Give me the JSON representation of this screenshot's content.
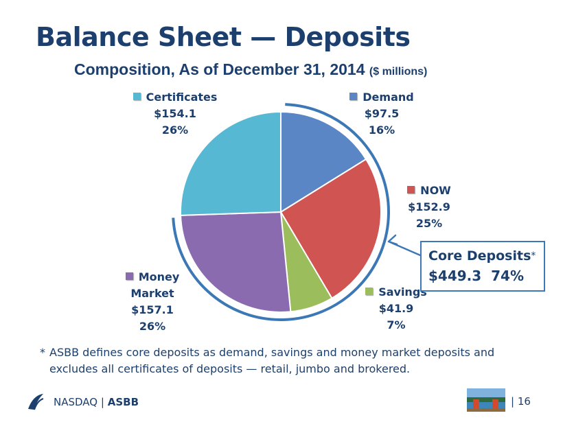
{
  "title": "Balance Sheet — Deposits",
  "subtitle": "Composition, As of December 31, 2014",
  "subtitle_unit": "($ millions)",
  "chart_data": {
    "type": "pie",
    "unit": "$ millions",
    "slices": [
      {
        "name": "Demand",
        "label_lines": [
          "Demand"
        ],
        "value": 97.5,
        "value_label": "$97.5",
        "percent": 16,
        "percent_label": "16%",
        "color": "#5a86c6"
      },
      {
        "name": "NOW",
        "label_lines": [
          "NOW"
        ],
        "value": 152.9,
        "value_label": "$152.9",
        "percent": 25,
        "percent_label": "25%",
        "color": "#cf5452"
      },
      {
        "name": "Savings",
        "label_lines": [
          "Savings"
        ],
        "value": 41.9,
        "value_label": "$41.9",
        "percent": 7,
        "percent_label": "7%",
        "color": "#9bbd5b"
      },
      {
        "name": "Money Market",
        "label_lines": [
          "Money",
          "Market"
        ],
        "value": 157.1,
        "value_label": "$157.1",
        "percent": 26,
        "percent_label": "26%",
        "color": "#8a6bb0"
      },
      {
        "name": "Certificates",
        "label_lines": [
          "Certificates"
        ],
        "value": 154.1,
        "value_label": "$154.1",
        "percent": 26,
        "percent_label": "26%",
        "color": "#56b8d2"
      }
    ]
  },
  "core_deposits": {
    "label": "Core Deposits",
    "asterisk": "*",
    "value": "$449.3",
    "percent": "74%"
  },
  "footnote": {
    "star": "*",
    "text": "ASBB defines core deposits as demand, savings and money market deposits and excludes all certificates of deposits — retail, jumbo and brokered."
  },
  "footer": {
    "exchange": "NASDAQ",
    "separator": "|",
    "ticker": "ASBB",
    "page_separator": "|",
    "page_number": "16"
  },
  "colors": {
    "title": "#1c3f6e",
    "arc": "#3c78b5"
  }
}
